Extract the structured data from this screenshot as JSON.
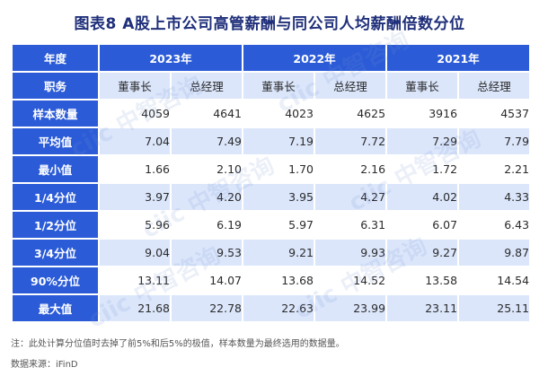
{
  "title": "图表8  A股上市公司高管薪酬与同公司人均薪酬倍数分位",
  "header": {
    "label": "年度",
    "years": [
      "2023年",
      "2022年",
      "2021年"
    ]
  },
  "subheader": {
    "label": "职务",
    "roles": [
      "董事长",
      "总经理",
      "董事长",
      "总经理",
      "董事长",
      "总经理"
    ]
  },
  "rows": [
    {
      "label": "样本数量",
      "values": [
        "4059",
        "4641",
        "4023",
        "4625",
        "3916",
        "4537"
      ]
    },
    {
      "label": "平均值",
      "values": [
        "7.04",
        "7.49",
        "7.19",
        "7.72",
        "7.29",
        "7.79"
      ]
    },
    {
      "label": "最小值",
      "values": [
        "1.66",
        "2.10",
        "1.70",
        "2.16",
        "1.72",
        "2.21"
      ]
    },
    {
      "label": "1/4分位",
      "values": [
        "3.97",
        "4.20",
        "3.95",
        "4.27",
        "4.02",
        "4.33"
      ]
    },
    {
      "label": "1/2分位",
      "values": [
        "5.96",
        "6.19",
        "5.97",
        "6.31",
        "6.07",
        "6.43"
      ]
    },
    {
      "label": "3/4分位",
      "values": [
        "9.04",
        "9.53",
        "9.21",
        "9.93",
        "9.27",
        "9.87"
      ]
    },
    {
      "label": "90%分位",
      "values": [
        "13.11",
        "14.07",
        "13.68",
        "14.52",
        "13.58",
        "14.54"
      ]
    },
    {
      "label": "最大值",
      "values": [
        "21.68",
        "22.78",
        "22.63",
        "23.99",
        "23.11",
        "25.11"
      ]
    }
  ],
  "note": "注：此处计算分位值时去掉了前5%和后5%的极值，样本数量为最终选用的数据量。",
  "source": "数据来源：iFinD",
  "watermark": "ciic 中智咨询",
  "colors": {
    "header_blue": "#2b5bd7",
    "title_navy": "#1f2f7a",
    "row_tint": "#dbe6fb"
  }
}
